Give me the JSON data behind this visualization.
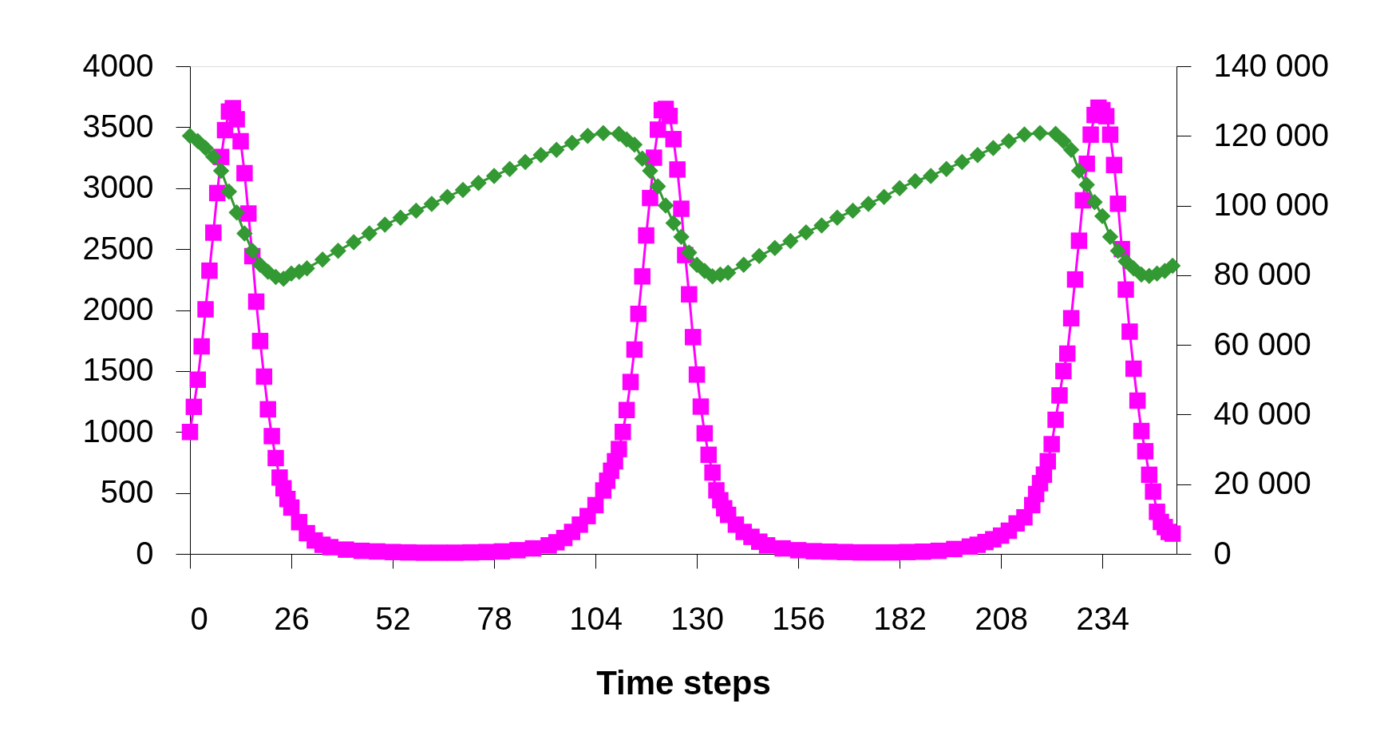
{
  "chart_data": {
    "type": "line",
    "xlabel": "Time steps",
    "xlim": [
      0,
      253
    ],
    "xticks": [
      0,
      26,
      52,
      78,
      104,
      130,
      156,
      182,
      208,
      234
    ],
    "ylim": [
      0,
      4000
    ],
    "yticks": [
      0,
      500,
      1000,
      1500,
      2000,
      2500,
      3000,
      3500,
      4000
    ],
    "y2lim": [
      0,
      140000
    ],
    "y2ticks": [
      0,
      {
        "value": 20000,
        "label": "20 000"
      },
      {
        "value": 40000,
        "label": "40 000"
      },
      {
        "value": 60000,
        "label": "60 000"
      },
      {
        "value": 80000,
        "label": "80 000"
      },
      {
        "value": 100000,
        "label": "100 000"
      },
      {
        "value": 120000,
        "label": "120 000"
      },
      {
        "value": 140000,
        "label": "140 000"
      }
    ],
    "grid": false,
    "line_style": "solid",
    "series": [
      {
        "color": "#ff00ff",
        "marker": "square",
        "x": [
          0,
          1,
          2,
          3,
          4,
          5,
          6,
          7,
          8,
          9,
          10,
          11,
          12,
          13,
          14,
          15,
          16,
          17,
          18,
          19,
          20,
          21,
          22,
          23,
          24,
          25,
          26,
          28,
          30,
          32,
          34,
          36,
          40,
          44,
          48,
          52,
          56,
          60,
          64,
          68,
          72,
          76,
          80,
          84,
          88,
          92,
          94,
          96,
          98,
          100,
          102,
          104,
          106,
          107,
          108,
          109,
          110,
          111,
          112,
          113,
          114,
          115,
          116,
          117,
          118,
          119,
          120,
          121,
          122,
          123,
          124,
          125,
          126,
          127,
          128,
          129,
          130,
          131,
          132,
          133,
          134,
          135,
          136,
          137,
          138,
          140,
          142,
          144,
          146,
          148,
          152,
          156,
          160,
          164,
          168,
          172,
          176,
          180,
          184,
          188,
          192,
          196,
          200,
          202,
          204,
          206,
          208,
          210,
          212,
          214,
          216,
          217,
          218,
          219,
          220,
          221,
          222,
          223,
          224,
          225,
          226,
          227,
          228,
          229,
          230,
          231,
          232,
          233,
          234,
          235,
          236,
          237,
          238,
          239,
          240,
          241,
          242,
          243,
          244,
          245,
          246,
          247,
          248,
          249,
          250,
          251,
          252
        ],
        "values": [
          1000,
          1206,
          1429,
          1702,
          2006,
          2323,
          2635,
          2960,
          3256,
          3476,
          3628,
          3656,
          3565,
          3385,
          3123,
          2792,
          2442,
          2069,
          1746,
          1454,
          1186,
          966,
          786,
          626,
          538,
          450,
          380,
          260,
          170,
          110,
          75,
          55,
          35,
          25,
          20,
          15,
          12,
          10,
          10,
          10,
          12,
          15,
          20,
          30,
          45,
          70,
          95,
          130,
          180,
          240,
          310,
          400,
          520,
          600,
          682,
          760,
          860,
          1000,
          1180,
          1410,
          1676,
          1969,
          2276,
          2612,
          2919,
          3250,
          3480,
          3640,
          3650,
          3592,
          3402,
          3153,
          2831,
          2451,
          2129,
          1778,
          1471,
          1208,
          989,
          813,
          667,
          521,
          440,
          374,
          320,
          240,
          180,
          140,
          100,
          70,
          45,
          30,
          22,
          18,
          15,
          12,
          12,
          12,
          15,
          18,
          25,
          40,
          60,
          75,
          97,
          120,
          150,
          190,
          250,
          300,
          400,
          491,
          580,
          650,
          760,
          900,
          1100,
          1300,
          1500,
          1643,
          1933,
          2251,
          2569,
          2900,
          3200,
          3439,
          3600,
          3660,
          3640,
          3590,
          3439,
          3190,
          2872,
          2500,
          2168,
          1823,
          1519,
          1257,
          1008,
          842,
          649,
          511,
          345,
          262,
          220,
          180,
          166
        ]
      },
      {
        "color": "#339933",
        "marker": "diamond",
        "axis": "y2",
        "x": [
          0,
          2,
          4,
          6,
          8,
          10,
          12,
          14,
          16,
          18,
          20,
          22,
          24,
          26,
          28,
          30,
          34,
          38,
          42,
          46,
          50,
          54,
          58,
          62,
          66,
          70,
          74,
          78,
          82,
          86,
          90,
          94,
          98,
          102,
          106,
          110,
          112,
          114,
          116,
          118,
          120,
          122,
          124,
          126,
          128,
          130,
          132,
          134,
          136,
          138,
          142,
          146,
          150,
          154,
          158,
          162,
          166,
          170,
          174,
          178,
          182,
          186,
          190,
          194,
          198,
          202,
          206,
          210,
          214,
          218,
          222,
          224,
          226,
          228,
          230,
          232,
          234,
          236,
          238,
          240,
          242,
          244,
          246,
          248,
          250,
          252
        ],
        "values": [
          120000,
          118500,
          116500,
          114000,
          110000,
          104000,
          98000,
          92000,
          87000,
          83000,
          81000,
          79500,
          79000,
          80500,
          81000,
          82000,
          84500,
          87000,
          89500,
          92000,
          94500,
          96500,
          98500,
          100500,
          102500,
          104500,
          106500,
          108500,
          110500,
          112500,
          114500,
          116000,
          118000,
          120000,
          120800,
          120600,
          119000,
          117500,
          113500,
          110000,
          105500,
          100000,
          95000,
          91000,
          86500,
          83000,
          81200,
          79700,
          80200,
          80700,
          83000,
          85500,
          87800,
          89800,
          92300,
          94300,
          96500,
          98500,
          100500,
          102500,
          105000,
          107000,
          108500,
          110500,
          112500,
          114500,
          116500,
          118500,
          120400,
          120800,
          120600,
          118500,
          116000,
          110000,
          106000,
          101000,
          97000,
          91000,
          87000,
          84000,
          82000,
          80200,
          79800,
          80500,
          81200,
          82700
        ]
      }
    ]
  }
}
